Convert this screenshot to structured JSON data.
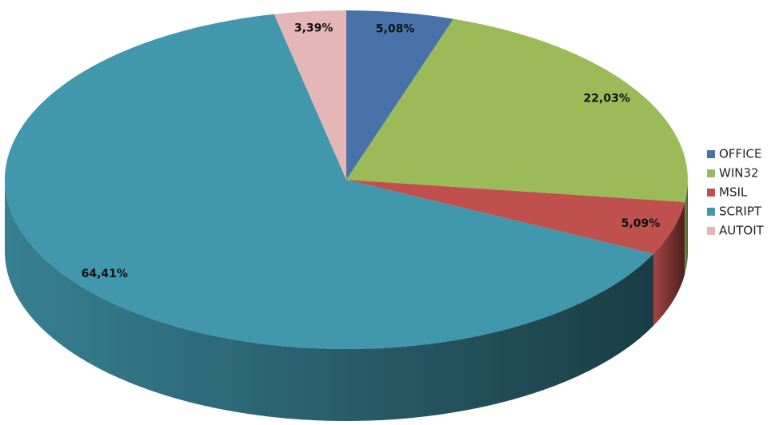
{
  "chart_data": {
    "type": "pie",
    "categories": [
      "OFFICE",
      "WIN32",
      "MSIL",
      "SCRIPT",
      "AUTOIT"
    ],
    "values": [
      5.08,
      22.03,
      5.09,
      64.41,
      3.39
    ],
    "value_labels": [
      "5,08%",
      "22,03%",
      "5,09%",
      "64,41%",
      "3,39%"
    ],
    "colors": [
      "#4872a8",
      "#9bbb59",
      "#c0504d",
      "#4197ab",
      "#e5b6b6"
    ],
    "legend": "right"
  }
}
